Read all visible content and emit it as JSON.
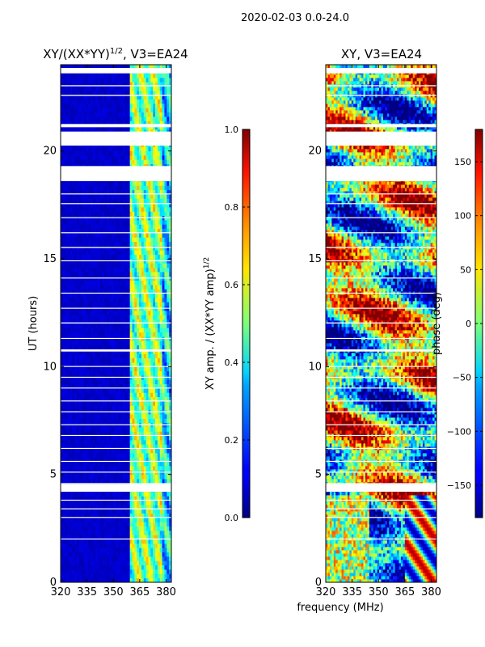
{
  "chart_data": {
    "type": "heatmap",
    "suptitle": "2020-02-03 0.0-24.0",
    "shared_xlabel": "frequency (MHz)",
    "panels": [
      {
        "id": "amp",
        "title": "XY/(XX*YY)",
        "title_exponent": "1/2",
        "title_suffix": ", V3=EA24",
        "ylabel": "UT (hours)",
        "xlim": [
          320,
          383
        ],
        "ylim": [
          0,
          24
        ],
        "xticks": [
          320,
          335,
          350,
          365,
          380
        ],
        "yticks": [
          0,
          5,
          10,
          15,
          20
        ],
        "colormap": "jet",
        "colorbar": {
          "label": "XY amp. / (XX*YY amp)",
          "label_exponent": "1/2",
          "range": [
            0.0,
            1.0
          ],
          "ticks": [
            "0.0",
            "0.2",
            "0.4",
            "0.6",
            "0.8",
            "1.0"
          ]
        },
        "description_levels": {
          "background": 0.05,
          "active_band_mhz": [
            360,
            383
          ],
          "active_level": [
            0.35,
            0.65
          ]
        }
      },
      {
        "id": "phase",
        "title": "XY, V3=EA24",
        "ylabel": "",
        "xlim": [
          320,
          383
        ],
        "ylim": [
          0,
          24
        ],
        "xticks": [
          320,
          335,
          350,
          365,
          380
        ],
        "yticks": [
          0,
          5,
          10,
          15,
          20
        ],
        "colormap": "jet",
        "colorbar": {
          "label": "phase (deg)",
          "range": [
            -180,
            180
          ],
          "ticks": [
            "-150",
            "-100",
            "-50",
            "0",
            "50",
            "100",
            "150"
          ]
        }
      }
    ],
    "missing_data_hours": [
      [
        23.6,
        23.85
      ],
      [
        23.0,
        23.05
      ],
      [
        22.55,
        22.6
      ],
      [
        21.1,
        21.25
      ],
      [
        20.25,
        20.9
      ],
      [
        18.6,
        19.3
      ],
      [
        18.0,
        18.03
      ],
      [
        17.55,
        17.58
      ],
      [
        16.9,
        16.93
      ],
      [
        16.2,
        16.23
      ],
      [
        15.5,
        15.55
      ],
      [
        14.9,
        14.93
      ],
      [
        14.1,
        14.13
      ],
      [
        13.4,
        13.43
      ],
      [
        12.7,
        12.73
      ],
      [
        12.0,
        12.05
      ],
      [
        11.3,
        11.33
      ],
      [
        10.7,
        10.8
      ],
      [
        10.0,
        10.03
      ],
      [
        9.5,
        9.53
      ],
      [
        9.0,
        9.03
      ],
      [
        8.4,
        8.43
      ],
      [
        7.9,
        7.93
      ],
      [
        7.3,
        7.33
      ],
      [
        6.8,
        6.83
      ],
      [
        6.2,
        6.23
      ],
      [
        5.6,
        5.63
      ],
      [
        5.1,
        5.13
      ],
      [
        4.55,
        4.6
      ],
      [
        4.2,
        4.55
      ],
      [
        3.8,
        3.83
      ],
      [
        3.4,
        3.43
      ],
      [
        3.0,
        3.03
      ],
      [
        2.0,
        2.03
      ]
    ]
  }
}
